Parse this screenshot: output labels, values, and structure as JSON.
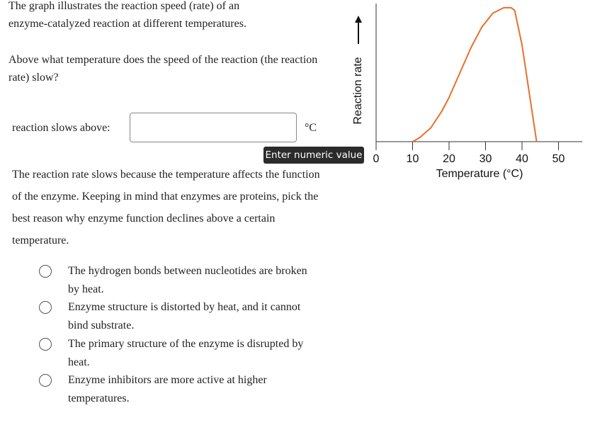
{
  "intro": "The graph illustrates the reaction speed (rate) of an enzyme-catalyzed reaction at different temperatures.",
  "question": "Above what temperature does the speed of the reaction (the reaction rate) slow?",
  "answer": {
    "label": "reaction slows above:",
    "unit": "°C",
    "tooltip": "Enter numeric value"
  },
  "followup": "The reaction rate slows because the temperature affects the function of the enzyme. Keeping in mind that enzymes are proteins, pick the best reason why enzyme function declines above a certain temperature.",
  "options": [
    "The hydrogen bonds between nucleotides are broken by heat.",
    "Enzyme structure is distorted by heat, and it cannot bind substrate.",
    "The primary structure of the enzyme is disrupted by heat.",
    "Enzyme inhibitors are more active at higher temperatures."
  ],
  "chart_data": {
    "type": "line",
    "xlabel": "Temperature (°C)",
    "ylabel": "Reaction rate",
    "color": "#e8702a",
    "x": [
      10,
      12,
      15,
      18,
      20,
      23,
      26,
      29,
      32,
      35,
      37,
      38,
      40,
      42,
      44
    ],
    "values": [
      0,
      3,
      10,
      22,
      32,
      50,
      68,
      83,
      93,
      97,
      97,
      95,
      70,
      35,
      0
    ],
    "xlim": [
      0,
      56.5
    ],
    "ylim": [
      0,
      100
    ],
    "xticks": [
      0,
      10,
      20,
      30,
      40,
      50
    ]
  }
}
